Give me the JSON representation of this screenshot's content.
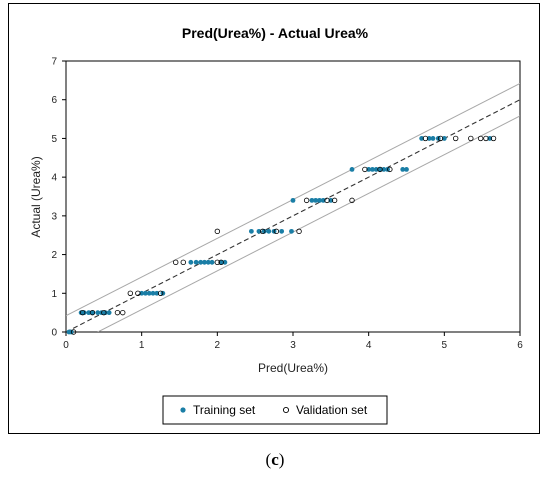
{
  "chart_data": {
    "type": "scatter",
    "title": "Pred(Urea%) - Actual Urea%",
    "xlabel": "Pred(Urea%)",
    "ylabel": "Actual (Urea%)",
    "xlim": [
      0,
      6
    ],
    "ylim": [
      0,
      7
    ],
    "x_ticks": [
      "0",
      "1",
      "2",
      "3",
      "4",
      "5",
      "6"
    ],
    "y_ticks": [
      "0",
      "1",
      "2",
      "3",
      "4",
      "5",
      "6",
      "7"
    ],
    "grid": false,
    "legend_position": "bottom",
    "series": [
      {
        "name": "Training set",
        "marker": "filled-circle",
        "color": "#1a7ea6",
        "points": [
          [
            0.04,
            0
          ],
          [
            0.07,
            0
          ],
          [
            0.2,
            0.5
          ],
          [
            0.24,
            0.5
          ],
          [
            0.3,
            0.5
          ],
          [
            0.35,
            0.5
          ],
          [
            0.42,
            0.5
          ],
          [
            0.47,
            0.5
          ],
          [
            0.52,
            0.5
          ],
          [
            0.57,
            0.5
          ],
          [
            1.0,
            1.0
          ],
          [
            1.05,
            1.0
          ],
          [
            1.1,
            1.0
          ],
          [
            1.15,
            1.0
          ],
          [
            1.2,
            1.0
          ],
          [
            1.28,
            1.0
          ],
          [
            1.65,
            1.8
          ],
          [
            1.72,
            1.8
          ],
          [
            1.78,
            1.8
          ],
          [
            1.83,
            1.8
          ],
          [
            1.88,
            1.8
          ],
          [
            1.93,
            1.8
          ],
          [
            2.05,
            1.8
          ],
          [
            2.1,
            1.8
          ],
          [
            2.45,
            2.6
          ],
          [
            2.55,
            2.6
          ],
          [
            2.62,
            2.6
          ],
          [
            2.68,
            2.6
          ],
          [
            2.75,
            2.6
          ],
          [
            2.85,
            2.6
          ],
          [
            2.98,
            2.6
          ],
          [
            3.0,
            3.4
          ],
          [
            3.25,
            3.4
          ],
          [
            3.3,
            3.4
          ],
          [
            3.35,
            3.4
          ],
          [
            3.4,
            3.4
          ],
          [
            3.5,
            3.4
          ],
          [
            3.78,
            4.2
          ],
          [
            4.0,
            4.2
          ],
          [
            4.05,
            4.2
          ],
          [
            4.1,
            4.2
          ],
          [
            4.15,
            4.2
          ],
          [
            4.2,
            4.2
          ],
          [
            4.25,
            4.2
          ],
          [
            4.45,
            4.2
          ],
          [
            4.5,
            4.2
          ],
          [
            4.7,
            5.0
          ],
          [
            4.8,
            5.0
          ],
          [
            4.85,
            5.0
          ],
          [
            4.92,
            5.0
          ],
          [
            5.0,
            5.0
          ],
          [
            5.6,
            5.0
          ]
        ]
      },
      {
        "name": "Validation set",
        "marker": "open-circle",
        "color": "#000000",
        "points": [
          [
            0.1,
            0
          ],
          [
            0.22,
            0.5
          ],
          [
            0.35,
            0.5
          ],
          [
            0.5,
            0.5
          ],
          [
            0.68,
            0.5
          ],
          [
            0.75,
            0.5
          ],
          [
            0.85,
            1.0
          ],
          [
            0.95,
            1.0
          ],
          [
            1.25,
            1.0
          ],
          [
            1.45,
            1.8
          ],
          [
            1.55,
            1.8
          ],
          [
            2.0,
            1.8
          ],
          [
            2.05,
            1.8
          ],
          [
            2.0,
            2.6
          ],
          [
            2.6,
            2.6
          ],
          [
            2.78,
            2.6
          ],
          [
            3.08,
            2.6
          ],
          [
            3.18,
            3.4
          ],
          [
            3.45,
            3.4
          ],
          [
            3.55,
            3.4
          ],
          [
            3.78,
            3.4
          ],
          [
            3.95,
            4.2
          ],
          [
            4.15,
            4.2
          ],
          [
            4.28,
            4.2
          ],
          [
            4.75,
            5.0
          ],
          [
            4.95,
            5.0
          ],
          [
            5.15,
            5.0
          ],
          [
            5.35,
            5.0
          ],
          [
            5.48,
            5.0
          ],
          [
            5.55,
            5.0
          ],
          [
            5.65,
            5.0
          ]
        ]
      }
    ],
    "reference_lines": [
      {
        "name": "fit",
        "style": "dashed",
        "from": [
          0,
          0
        ],
        "to": [
          6,
          6.0
        ]
      },
      {
        "name": "upper-band",
        "style": "solid",
        "from": [
          0,
          0.42
        ],
        "to": [
          6,
          6.42
        ]
      },
      {
        "name": "lower-band",
        "style": "solid",
        "from": [
          0.42,
          0
        ],
        "to": [
          6,
          5.58
        ]
      }
    ]
  },
  "caption": {
    "open": "(",
    "letter": "c",
    "close": ")"
  }
}
